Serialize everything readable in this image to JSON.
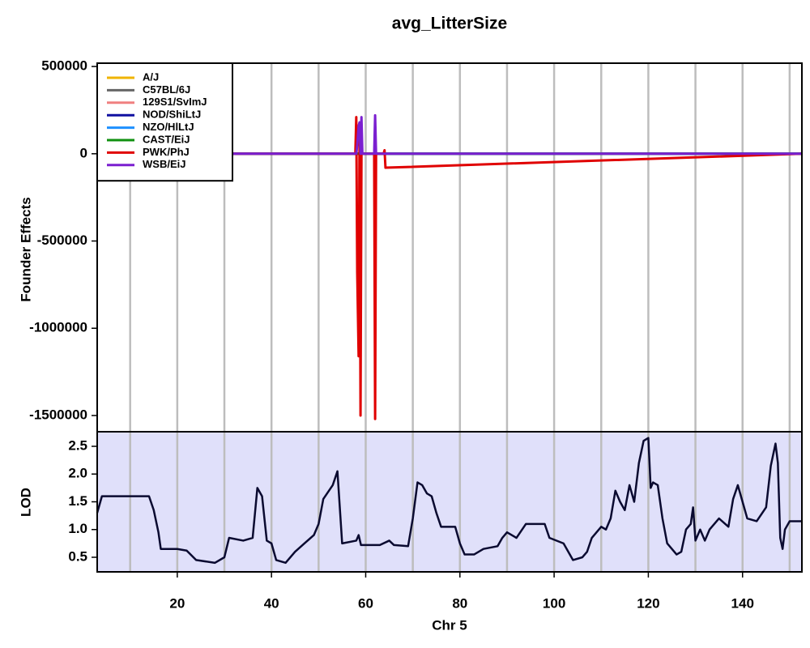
{
  "chart_data": [
    {
      "type": "line",
      "title": "avg_LitterSize",
      "y_label": "Founder Effects",
      "xlim": [
        3,
        152.6
      ],
      "xgrid": [
        10,
        20,
        30,
        40,
        50,
        60,
        70,
        80,
        90,
        100,
        110,
        120,
        130,
        140,
        150
      ],
      "ylim": [
        -1593000,
        519000
      ],
      "yticks": [
        500000,
        0,
        -500000,
        -1000000,
        -1500000
      ],
      "legend": "top-left",
      "x": [
        3,
        57.8,
        58,
        58.2,
        58.5,
        58.7,
        58.9,
        59.1,
        59.3,
        61.8,
        62,
        62.2,
        63.8,
        64,
        64.2,
        152.6
      ],
      "series": [
        {
          "name": "A/J",
          "color": "#f0b400",
          "values": [
            0,
            0,
            0,
            0,
            0,
            0,
            0,
            0,
            0,
            0,
            0,
            0,
            0,
            0,
            0,
            0
          ]
        },
        {
          "name": "C57BL/6J",
          "color": "#666666",
          "values": [
            0,
            0,
            0,
            0,
            0,
            0,
            0,
            0,
            0,
            0,
            0,
            0,
            0,
            0,
            0,
            0
          ]
        },
        {
          "name": "129S1/SvImJ",
          "color": "#f08080",
          "values": [
            0,
            0,
            0,
            0,
            0,
            0,
            0,
            0,
            0,
            0,
            0,
            0,
            0,
            0,
            0,
            0
          ]
        },
        {
          "name": "NOD/ShiLtJ",
          "color": "#1010a0",
          "values": [
            0,
            0,
            0,
            0,
            0,
            0,
            0,
            0,
            0,
            0,
            0,
            0,
            0,
            0,
            0,
            0
          ]
        },
        {
          "name": "NZO/HlLtJ",
          "color": "#1e90ff",
          "values": [
            0,
            0,
            0,
            0,
            0,
            0,
            0,
            0,
            0,
            0,
            0,
            0,
            0,
            0,
            0,
            0
          ]
        },
        {
          "name": "CAST/EiJ",
          "color": "#109010",
          "values": [
            0,
            0,
            0,
            0,
            0,
            0,
            0,
            0,
            0,
            0,
            0,
            0,
            0,
            0,
            0,
            0
          ]
        },
        {
          "name": "PWK/PhJ",
          "color": "#e00000",
          "values": [
            0,
            0,
            210000,
            -680000,
            -1160000,
            150000,
            -1500000,
            0,
            0,
            0,
            -1520000,
            0,
            0,
            20000,
            -80000,
            0
          ]
        },
        {
          "name": "WSB/EiJ",
          "color": "#7b1fd0",
          "values": [
            0,
            0,
            0,
            50000,
            160000,
            180000,
            0,
            210000,
            0,
            0,
            220000,
            0,
            0,
            0,
            0,
            0
          ]
        }
      ]
    },
    {
      "type": "line",
      "y_label": "LOD",
      "x_label": "Chr 5",
      "color": "#0a0a30",
      "background": "#e0e0fa",
      "xlim": [
        3,
        152.6
      ],
      "xticks": [
        20,
        40,
        60,
        80,
        100,
        120,
        140
      ],
      "xgrid": [
        10,
        20,
        30,
        40,
        50,
        60,
        70,
        80,
        90,
        100,
        110,
        120,
        130,
        140,
        150
      ],
      "ylim": [
        0.237,
        2.763
      ],
      "yticks": [
        0.5,
        {
          "value": 1,
          "label": "1.0"
        },
        1.5,
        {
          "value": 2,
          "label": "2.0"
        },
        2.5
      ],
      "x": [
        3,
        4,
        14,
        15,
        16,
        16.5,
        20,
        22,
        24,
        28,
        30,
        31,
        34,
        36,
        37,
        38,
        39,
        40,
        41,
        43,
        45,
        47,
        49,
        50,
        51,
        53,
        54,
        55,
        58,
        58.5,
        59,
        63,
        65,
        66,
        69,
        70,
        71,
        72,
        73,
        74,
        75,
        76,
        79,
        80,
        81,
        83,
        85,
        88,
        89,
        90,
        92,
        94,
        98,
        99,
        102,
        104,
        106,
        107,
        108,
        110,
        111,
        112,
        113,
        114,
        115,
        116,
        117,
        118,
        119,
        120,
        120.5,
        121,
        122,
        123,
        124,
        126,
        127,
        128,
        129,
        129.5,
        130,
        131,
        132,
        133,
        135,
        137,
        138,
        139,
        140,
        141,
        143,
        145,
        146,
        147,
        147.5,
        148,
        148.5,
        149,
        150,
        152.6
      ],
      "values": [
        1.3,
        1.6,
        1.6,
        1.35,
        0.95,
        0.65,
        0.65,
        0.62,
        0.45,
        0.4,
        0.5,
        0.85,
        0.8,
        0.85,
        1.75,
        1.6,
        0.8,
        0.75,
        0.45,
        0.4,
        0.6,
        0.75,
        0.9,
        1.1,
        1.55,
        1.8,
        2.05,
        0.75,
        0.8,
        0.9,
        0.72,
        0.72,
        0.8,
        0.72,
        0.7,
        1.2,
        1.85,
        1.8,
        1.65,
        1.6,
        1.3,
        1.05,
        1.05,
        0.75,
        0.55,
        0.55,
        0.65,
        0.7,
        0.85,
        0.95,
        0.85,
        1.1,
        1.1,
        0.85,
        0.75,
        0.45,
        0.5,
        0.6,
        0.85,
        1.05,
        1.0,
        1.2,
        1.7,
        1.5,
        1.35,
        1.8,
        1.5,
        2.2,
        2.6,
        2.65,
        1.75,
        1.85,
        1.8,
        1.2,
        0.75,
        0.55,
        0.6,
        1.0,
        1.1,
        1.4,
        0.8,
        1.0,
        0.8,
        1.0,
        1.2,
        1.05,
        1.55,
        1.8,
        1.5,
        1.2,
        1.15,
        1.4,
        2.15,
        2.55,
        2.2,
        0.85,
        0.65,
        1.0,
        1.15,
        1.15
      ]
    }
  ]
}
